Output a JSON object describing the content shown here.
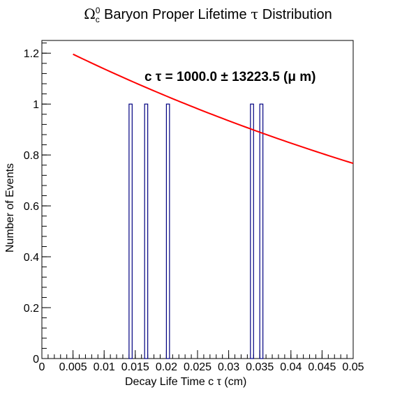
{
  "chart_data": {
    "type": "bar",
    "title": {
      "prefix": "Ω",
      "sub": "c",
      "sup": "0",
      "rest": " Baryon Proper Lifetime ",
      "tau": "τ",
      "suffix": " Distribution"
    },
    "xlabel": "Decay Life Time c   τ (cm)",
    "ylabel": "Number of Events",
    "xlim": [
      0,
      0.05
    ],
    "ylim": [
      0,
      1.25
    ],
    "x_ticks": [
      0,
      0.005,
      0.01,
      0.015,
      0.02,
      0.025,
      0.03,
      0.035,
      0.04,
      0.045,
      0.05
    ],
    "x_tick_labels": [
      "0",
      "0.005",
      "0.01",
      "0.015",
      "0.02",
      "0.025",
      "0.03",
      "0.035",
      "0.04",
      "0.045",
      "0.05"
    ],
    "y_ticks": [
      0,
      0.2,
      0.4,
      0.6,
      0.8,
      1.0,
      1.2
    ],
    "y_tick_labels": [
      "0",
      "0.2",
      "0.4",
      "0.6",
      "0.8",
      "1",
      "1.2"
    ],
    "bin_width": 0.0005,
    "bins": [
      {
        "low": 0.014,
        "count": 1
      },
      {
        "low": 0.0165,
        "count": 1
      },
      {
        "low": 0.02,
        "count": 1
      },
      {
        "low": 0.0335,
        "count": 1
      },
      {
        "low": 0.035,
        "count": 1
      }
    ],
    "fit": {
      "x_start": 0.005,
      "x_end": 0.05,
      "y_start": 1.196,
      "y_end": 0.767
    },
    "fit_label": "c  τ = 1000.0 ± 13223.5 (μ m)",
    "colors": {
      "bars": "#000080",
      "fit": "#ff0000",
      "axes": "#000000"
    }
  }
}
